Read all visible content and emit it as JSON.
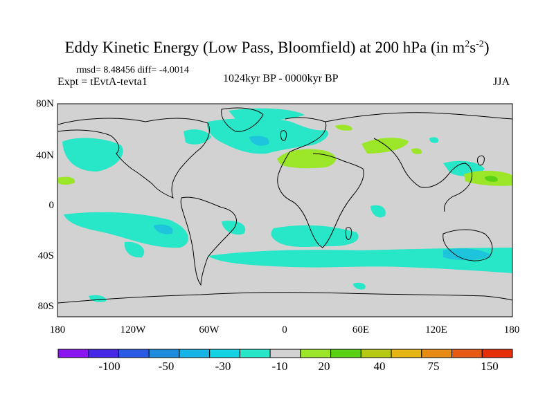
{
  "title": {
    "main": "Eddy Kinetic Energy (Low Pass, Bloomfield) at 200 hPa (in m",
    "sup1": "2",
    "mid": "s",
    "sup2": "-2",
    "end": ")"
  },
  "stats": "rmsd= 8.48456 diff= -4.0014",
  "experiment": "Expt = tEvtA-tevta1",
  "period": "1024kyr BP - 0000kyr BP",
  "season": "JJA",
  "map": {
    "background_color": "#d2d2d2",
    "lat_labels": [
      "80N",
      "40N",
      "0",
      "40S",
      "80S"
    ],
    "lon_labels": [
      "180",
      "120W",
      "60W",
      "0",
      "60E",
      "120E",
      "180"
    ],
    "fill_colors": {
      "negative_10_20": "#28e6c8",
      "negative_20_30": "#1ec4dc",
      "negative_30_50": "#14aadc",
      "positive_10_20": "#9be628",
      "positive_20_30": "#5ad214"
    }
  },
  "colorbar": {
    "colors": [
      "#8c14f0",
      "#4628e6",
      "#285ae6",
      "#1e8cdc",
      "#14b4e6",
      "#14d2e6",
      "#28e6c8",
      "#d2d2d2",
      "#9be628",
      "#5ad214",
      "#b4c814",
      "#e6b414",
      "#e68c14",
      "#e65a14",
      "#e62d0a"
    ],
    "labels": [
      "-100",
      "-50",
      "-30",
      "-10",
      "20",
      "40",
      "75",
      "150"
    ]
  }
}
